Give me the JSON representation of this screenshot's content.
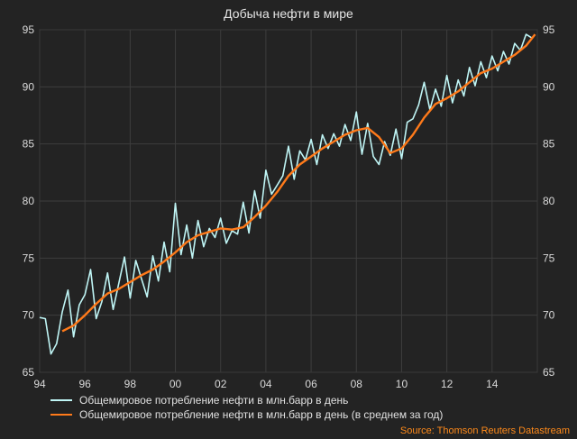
{
  "chart_data": {
    "type": "line",
    "title": "Добыча нефти в мире",
    "xlabel": "",
    "ylabel": "",
    "xlim": [
      1994,
      2016
    ],
    "ylim": [
      65,
      95
    ],
    "x_ticks": [
      1994,
      1996,
      1998,
      2000,
      2002,
      2004,
      2006,
      2008,
      2010,
      2012,
      2014
    ],
    "x_tick_labels": [
      "94",
      "96",
      "98",
      "00",
      "02",
      "04",
      "06",
      "08",
      "10",
      "12",
      "14"
    ],
    "y_ticks": [
      65,
      70,
      75,
      80,
      85,
      90,
      95
    ],
    "y_tick_labels": [
      "65",
      "70",
      "75",
      "80",
      "85",
      "90",
      "95"
    ],
    "grid": true,
    "legend_position": "bottom-left",
    "source": "Source: Thomson Reuters Datastream",
    "series": [
      {
        "name": "Общемировое потребление нефти в млн.барр в день",
        "color": "#bff5f5",
        "x": [
          1994.0,
          1994.25,
          1994.5,
          1994.75,
          1995.0,
          1995.25,
          1995.5,
          1995.75,
          1996.0,
          1996.25,
          1996.5,
          1996.75,
          1997.0,
          1997.25,
          1997.5,
          1997.75,
          1998.0,
          1998.25,
          1998.5,
          1998.75,
          1999.0,
          1999.25,
          1999.5,
          1999.75,
          2000.0,
          2000.25,
          2000.5,
          2000.75,
          2001.0,
          2001.25,
          2001.5,
          2001.75,
          2002.0,
          2002.25,
          2002.5,
          2002.75,
          2003.0,
          2003.25,
          2003.5,
          2003.75,
          2004.0,
          2004.25,
          2004.5,
          2004.75,
          2005.0,
          2005.25,
          2005.5,
          2005.75,
          2006.0,
          2006.25,
          2006.5,
          2006.75,
          2007.0,
          2007.25,
          2007.5,
          2007.75,
          2008.0,
          2008.25,
          2008.5,
          2008.75,
          2009.0,
          2009.25,
          2009.5,
          2009.75,
          2010.0,
          2010.25,
          2010.5,
          2010.75,
          2011.0,
          2011.25,
          2011.5,
          2011.75,
          2012.0,
          2012.25,
          2012.5,
          2012.75,
          2013.0,
          2013.25,
          2013.5,
          2013.75,
          2014.0,
          2014.25,
          2014.5,
          2014.75,
          2015.0,
          2015.25,
          2015.5,
          2015.75
        ],
        "values": [
          69.8,
          69.7,
          66.6,
          67.5,
          70.3,
          72.2,
          68.1,
          70.9,
          71.8,
          74.0,
          69.7,
          71.2,
          73.7,
          70.5,
          72.8,
          75.1,
          71.5,
          74.8,
          73.2,
          71.6,
          75.2,
          73.0,
          76.4,
          73.8,
          79.8,
          75.3,
          77.9,
          75.0,
          78.3,
          76.0,
          77.6,
          76.8,
          78.5,
          76.3,
          77.4,
          77.1,
          79.9,
          77.2,
          80.9,
          78.5,
          82.7,
          80.6,
          81.4,
          82.2,
          84.8,
          81.9,
          84.4,
          83.6,
          85.4,
          83.2,
          85.8,
          84.6,
          85.9,
          84.8,
          86.7,
          85.3,
          87.8,
          84.1,
          86.8,
          83.9,
          83.2,
          85.2,
          84.0,
          86.3,
          83.7,
          86.9,
          87.2,
          88.4,
          90.4,
          88.0,
          89.8,
          88.3,
          91.0,
          88.6,
          90.6,
          89.2,
          91.7,
          90.1,
          92.2,
          90.8,
          92.7,
          91.4,
          93.1,
          92.0,
          93.8,
          93.2,
          94.6,
          94.3
        ]
      },
      {
        "name": "Общемировое потребление нефти в млн.барр в день (в среднем за год)",
        "color": "#ff7a1a",
        "x": [
          1995.0,
          1995.5,
          1996.0,
          1996.5,
          1997.0,
          1997.5,
          1998.0,
          1998.5,
          1999.0,
          1999.5,
          2000.0,
          2000.5,
          2001.0,
          2001.5,
          2002.0,
          2002.5,
          2003.0,
          2003.5,
          2004.0,
          2004.5,
          2005.0,
          2005.5,
          2006.0,
          2006.5,
          2007.0,
          2007.5,
          2008.0,
          2008.5,
          2009.0,
          2009.5,
          2010.0,
          2010.5,
          2011.0,
          2011.5,
          2012.0,
          2012.5,
          2013.0,
          2013.5,
          2014.0,
          2014.5,
          2015.0,
          2015.5,
          2015.9
        ],
        "values": [
          68.6,
          69.1,
          70.0,
          71.0,
          71.9,
          72.3,
          72.9,
          73.5,
          74.0,
          74.7,
          75.5,
          76.4,
          77.0,
          77.3,
          77.6,
          77.5,
          77.7,
          78.6,
          79.6,
          80.8,
          82.2,
          83.2,
          83.9,
          84.6,
          85.2,
          85.8,
          86.2,
          86.4,
          85.6,
          84.2,
          84.6,
          85.8,
          87.3,
          88.5,
          89.0,
          89.6,
          90.4,
          91.2,
          91.6,
          92.2,
          92.8,
          93.6,
          94.6
        ]
      }
    ]
  }
}
